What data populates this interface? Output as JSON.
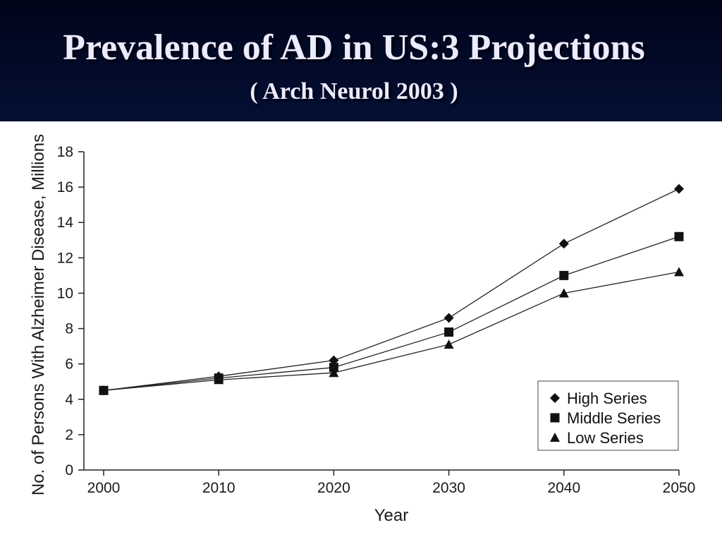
{
  "slide": {
    "title": "Prevalence of  AD in US:3 Projections",
    "subtitle": "( Arch Neurol 2003 )"
  },
  "colors": {
    "background_dark": "#01051a",
    "background_blue": "#0a2470",
    "title_text": "#ecebff",
    "chart_background": "#ffffff",
    "series_ink": "#111111"
  },
  "chart_data": {
    "type": "line",
    "title": "",
    "xlabel": "Year",
    "ylabel": "No.  of Persons With Alzheimer Disease, Millions",
    "x": [
      2000,
      2010,
      2020,
      2030,
      2040,
      2050
    ],
    "x_tick_labels": [
      "2000",
      "2010",
      "2020",
      "2030",
      "2040",
      "2050"
    ],
    "y_ticks": [
      0,
      2,
      4,
      6,
      8,
      10,
      12,
      14,
      16,
      18
    ],
    "y_tick_labels": [
      "0",
      "2",
      "4",
      "6",
      "8",
      "10",
      "12",
      "14",
      "16",
      "18"
    ],
    "xlim": [
      2000,
      2050
    ],
    "ylim": [
      0,
      18
    ],
    "grid": false,
    "legend_position": "bottom-right",
    "series": [
      {
        "name": "High Series",
        "marker": "diamond",
        "values": [
          4.5,
          5.3,
          6.2,
          8.6,
          12.8,
          15.9
        ]
      },
      {
        "name": "Middle Series",
        "marker": "square",
        "values": [
          4.5,
          5.2,
          5.8,
          7.8,
          11.0,
          13.2
        ]
      },
      {
        "name": "Low Series",
        "marker": "triangle",
        "values": [
          4.5,
          5.1,
          5.5,
          7.1,
          10.0,
          11.2
        ]
      }
    ]
  }
}
